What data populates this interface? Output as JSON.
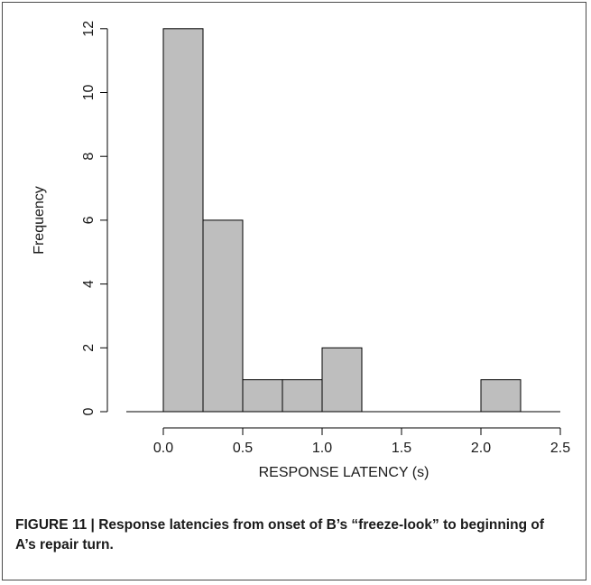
{
  "caption": {
    "label": "FIGURE 11 |",
    "text": "Response latencies from onset of B’s “freeze-look” to beginning of A’s repair turn."
  },
  "chart_data": {
    "type": "bar",
    "variant": "histogram",
    "title": "",
    "xlabel": "RESPONSE LATENCY (s)",
    "ylabel": "Frequency",
    "bin_width": 0.25,
    "bins": [
      {
        "start": 0.0,
        "end": 0.25,
        "count": 12
      },
      {
        "start": 0.25,
        "end": 0.5,
        "count": 6
      },
      {
        "start": 0.5,
        "end": 0.75,
        "count": 1
      },
      {
        "start": 0.75,
        "end": 1.0,
        "count": 1
      },
      {
        "start": 1.0,
        "end": 1.25,
        "count": 2
      },
      {
        "start": 1.25,
        "end": 1.5,
        "count": 0
      },
      {
        "start": 1.5,
        "end": 1.75,
        "count": 0
      },
      {
        "start": 1.75,
        "end": 2.0,
        "count": 0
      },
      {
        "start": 2.0,
        "end": 2.25,
        "count": 1
      }
    ],
    "xlim": [
      -0.25,
      2.5
    ],
    "ylim": [
      0,
      12
    ],
    "x_ticks": [
      0.0,
      0.5,
      1.0,
      1.5,
      2.0,
      2.5
    ],
    "x_tick_labels": [
      "0.0",
      "0.5",
      "1.0",
      "1.5",
      "2.0",
      "2.5"
    ],
    "y_ticks": [
      0,
      2,
      4,
      6,
      8,
      10,
      12
    ],
    "y_tick_labels": [
      "0",
      "2",
      "4",
      "6",
      "8",
      "10",
      "12"
    ],
    "bar_color": "#bebebe",
    "bar_edge_color": "#000000",
    "grid": false,
    "legend": "none"
  }
}
